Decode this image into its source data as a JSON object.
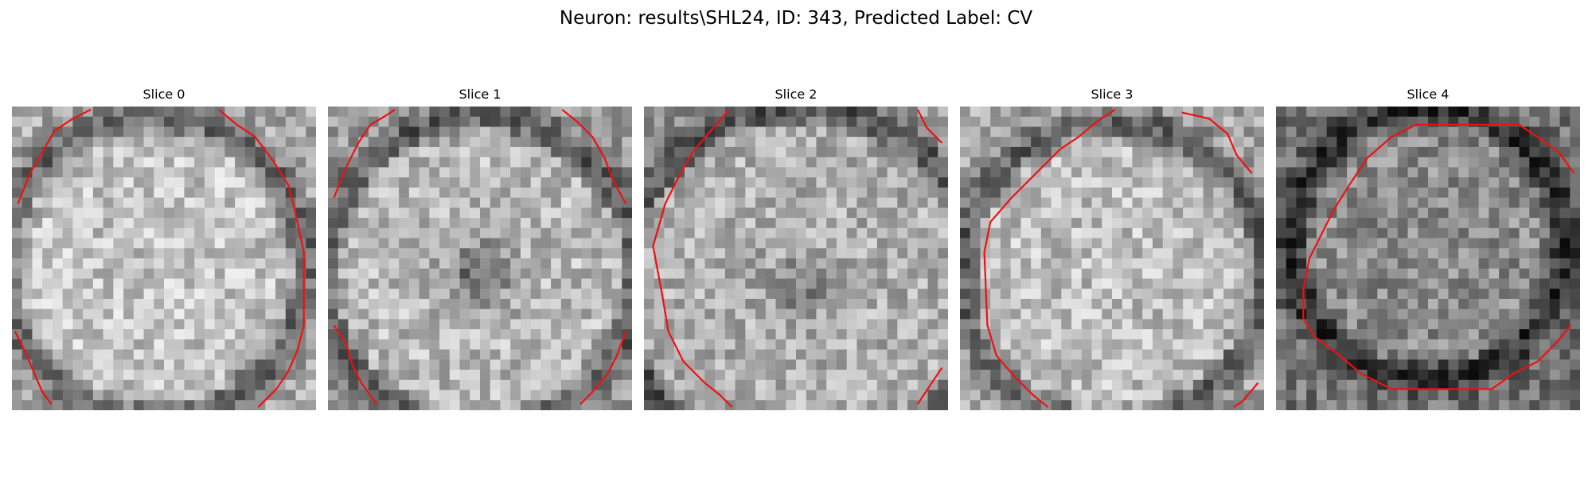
{
  "figure": {
    "title": "Neuron: results\\SHL24, ID: 343, Predicted Label: CV"
  },
  "panels": [
    {
      "title": "Slice 0"
    },
    {
      "title": "Slice 1"
    },
    {
      "title": "Slice 2"
    },
    {
      "title": "Slice 3"
    },
    {
      "title": "Slice 4"
    }
  ],
  "colors": {
    "contour": "#ee1111",
    "background": "#ffffff",
    "image_colormap": "gray"
  }
}
